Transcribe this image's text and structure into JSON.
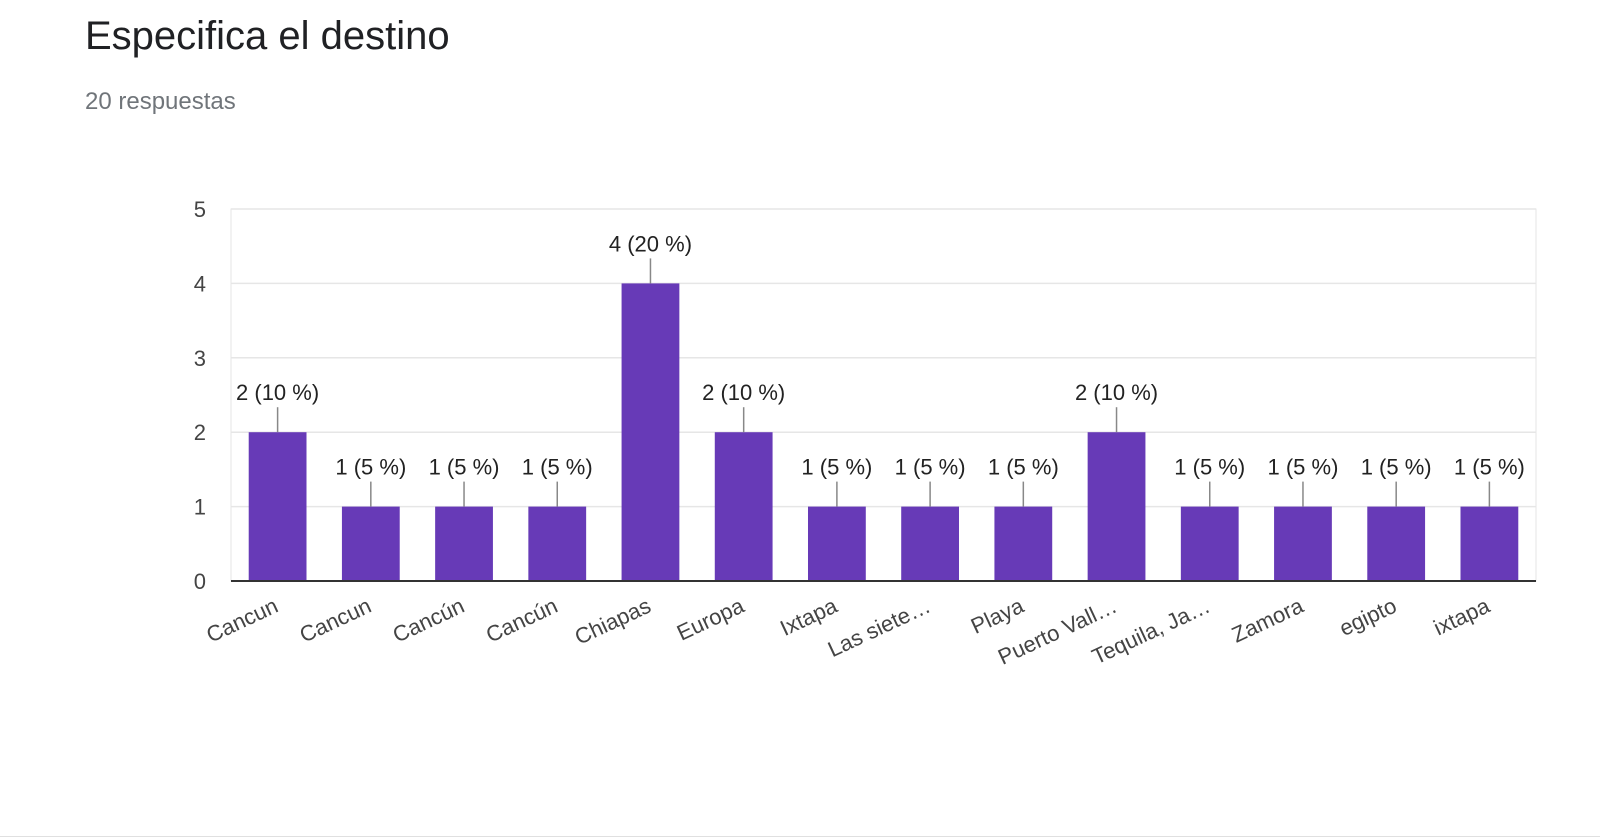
{
  "question": {
    "title": "Especifica el destino",
    "response_count": "20 respuestas"
  },
  "colors": {
    "bar": "#673ab7",
    "grid": "#e6e6e6",
    "axis": "#333333",
    "text": "#222222",
    "tick_text": "#444444",
    "leader": "#888888"
  },
  "chart_data": {
    "type": "bar",
    "title": "",
    "xlabel": "",
    "ylabel": "",
    "ylim": [
      0,
      5
    ],
    "yticks": [
      0,
      1,
      2,
      3,
      4,
      5
    ],
    "grid": true,
    "categories": [
      "Cancun",
      "Cancun",
      "Cancún",
      "Cancún",
      "Chiapas",
      "Europa",
      "Ixtapa",
      "Las siete…",
      "Playa",
      "Puerto Vall…",
      "Tequila, Ja…",
      "Zamora",
      "egipto",
      "ixtapa"
    ],
    "values": [
      2,
      1,
      1,
      1,
      4,
      2,
      1,
      1,
      1,
      2,
      1,
      1,
      1,
      1
    ],
    "data_labels": [
      "2 (10 %)",
      "1 (5 %)",
      "1 (5 %)",
      "1 (5 %)",
      "4 (20 %)",
      "2 (10 %)",
      "1 (5 %)",
      "1 (5 %)",
      "1 (5 %)",
      "2 (10 %)",
      "1 (5 %)",
      "1 (5 %)",
      "1 (5 %)",
      "1 (5 %)"
    ]
  }
}
